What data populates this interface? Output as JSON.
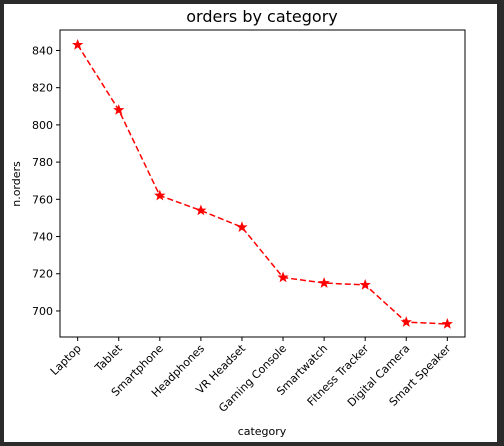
{
  "chart_data": {
    "type": "line",
    "title": "orders by category",
    "xlabel": "category",
    "ylabel": "n.orders",
    "categories": [
      "Laptop",
      "Tablet",
      "Smartphone",
      "Headphones",
      "VR Headset",
      "Gaming Console",
      "Smartwatch",
      "Fitness Tracker",
      "Digital Camera",
      "Smart Speaker"
    ],
    "values": [
      843,
      808,
      762,
      754,
      745,
      718,
      715,
      714,
      694,
      693
    ],
    "color": "#ff0000",
    "line_style": "dashed",
    "marker": "star",
    "ylim": [
      686,
      851
    ],
    "yticks": [
      700,
      720,
      740,
      760,
      780,
      800,
      820,
      840
    ],
    "grid": false
  }
}
